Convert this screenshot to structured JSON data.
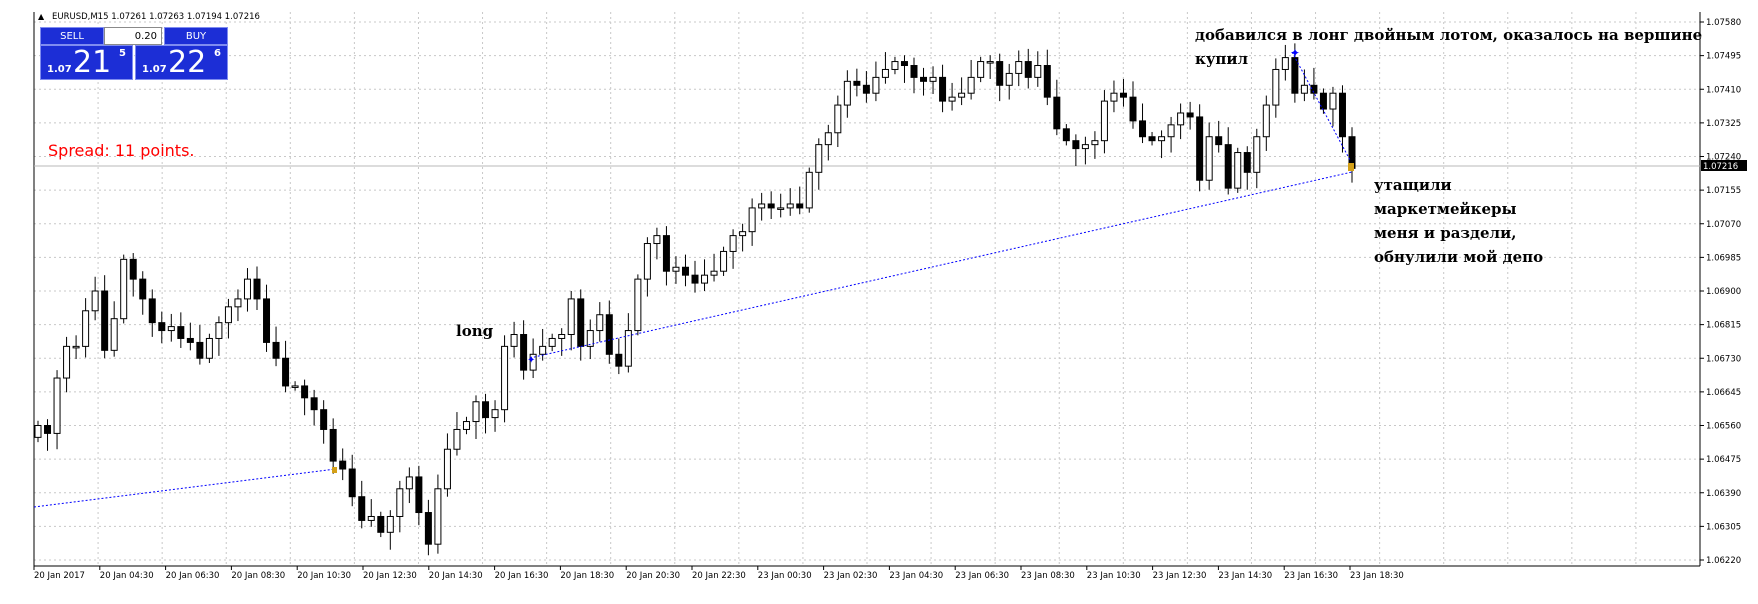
{
  "header": {
    "symbol_line": "EURUSD,M15  1.07261 1.07263 1.07194 1.07216",
    "expand_icon": "triangle-up-icon"
  },
  "trade_panel": {
    "sell_label": "SELL",
    "buy_label": "BUY",
    "lot_value": "0.20",
    "sell_price": {
      "prefix": "1.07",
      "big": "21",
      "sup": "5"
    },
    "buy_price": {
      "prefix": "1.07",
      "big": "22",
      "sup": "6"
    }
  },
  "spread_text": "Spread: 11 points.",
  "annotations": {
    "long": "long",
    "top_line1": "добавился в лонг двойным лотом, оказалось на вершине",
    "top_line2": "купил",
    "right_lines": [
      "утащили",
      "маркетмейкеры",
      "меня и раздели,",
      "обнулили мой депо"
    ]
  },
  "colors": {
    "trade_button": "#1c2ed6",
    "spread_text": "#ff0000",
    "trendline": "#0000ff",
    "grid": "#c8c8c8",
    "current_price_tag": "#000000"
  },
  "chart_data": {
    "type": "candlestick",
    "symbol": "EURUSD",
    "timeframe": "M15",
    "ylim": [
      1.0622,
      1.0758
    ],
    "y_ticks": [
      "1.07580",
      "1.07495",
      "1.07410",
      "1.07325",
      "1.07240",
      "1.07155",
      "1.07070",
      "1.06985",
      "1.06900",
      "1.06815",
      "1.06730",
      "1.06645",
      "1.06560",
      "1.06475",
      "1.06390",
      "1.06305",
      "1.06220"
    ],
    "x_ticks": [
      "20 Jan 2017",
      "20 Jan 04:30",
      "20 Jan 06:30",
      "20 Jan 08:30",
      "20 Jan 10:30",
      "20 Jan 12:30",
      "20 Jan 14:30",
      "20 Jan 16:30",
      "20 Jan 18:30",
      "20 Jan 20:30",
      "20 Jan 22:30",
      "23 Jan 00:30",
      "23 Jan 02:30",
      "23 Jan 04:30",
      "23 Jan 06:30",
      "23 Jan 08:30",
      "23 Jan 10:30",
      "23 Jan 12:30",
      "23 Jan 14:30",
      "23 Jan 16:30",
      "23 Jan 18:30"
    ],
    "current_price": "1.07216",
    "grid": true,
    "closes": [
      1.0656,
      1.0654,
      1.0668,
      1.0676,
      1.0676,
      1.0685,
      1.069,
      1.0675,
      1.0683,
      1.0698,
      1.0693,
      1.0688,
      1.0682,
      1.068,
      1.0681,
      1.0678,
      1.0677,
      1.0673,
      1.0678,
      1.0682,
      1.0686,
      1.0688,
      1.0693,
      1.0688,
      1.0677,
      1.0673,
      1.0666,
      1.0666,
      1.0663,
      1.066,
      1.0655,
      1.0647,
      1.0645,
      1.0638,
      1.0632,
      1.0633,
      1.0629,
      1.0633,
      1.064,
      1.0643,
      1.0634,
      1.0626,
      1.064,
      1.065,
      1.0655,
      1.0657,
      1.0662,
      1.0658,
      1.066,
      1.0676,
      1.0679,
      1.067,
      1.0674,
      1.0676,
      1.0678,
      1.0679,
      1.0688,
      1.0676,
      1.068,
      1.0684,
      1.0674,
      1.0671,
      1.068,
      1.0693,
      1.0702,
      1.0704,
      1.0695,
      1.0696,
      1.0694,
      1.0692,
      1.0694,
      1.0695,
      1.07,
      1.0704,
      1.0705,
      1.0711,
      1.0712,
      1.0711,
      1.0711,
      1.0712,
      1.0711,
      1.072,
      1.0727,
      1.073,
      1.0737,
      1.0743,
      1.0742,
      1.074,
      1.0744,
      1.0746,
      1.0748,
      1.0747,
      1.0744,
      1.0743,
      1.0744,
      1.0738,
      1.0739,
      1.074,
      1.0744,
      1.0748,
      1.0748,
      1.0742,
      1.0745,
      1.0748,
      1.0744,
      1.0747,
      1.0739,
      1.0731,
      1.0728,
      1.0726,
      1.0727,
      1.0728,
      1.0738,
      1.074,
      1.0739,
      1.0733,
      1.0729,
      1.0728,
      1.0729,
      1.0732,
      1.0735,
      1.0734,
      1.0718,
      1.0729,
      1.0727,
      1.0716,
      1.0725,
      1.072,
      1.0729,
      1.0737,
      1.0746,
      1.0749,
      1.074,
      1.0742,
      1.074,
      1.0736,
      1.074,
      1.0729,
      1.0721
    ]
  }
}
